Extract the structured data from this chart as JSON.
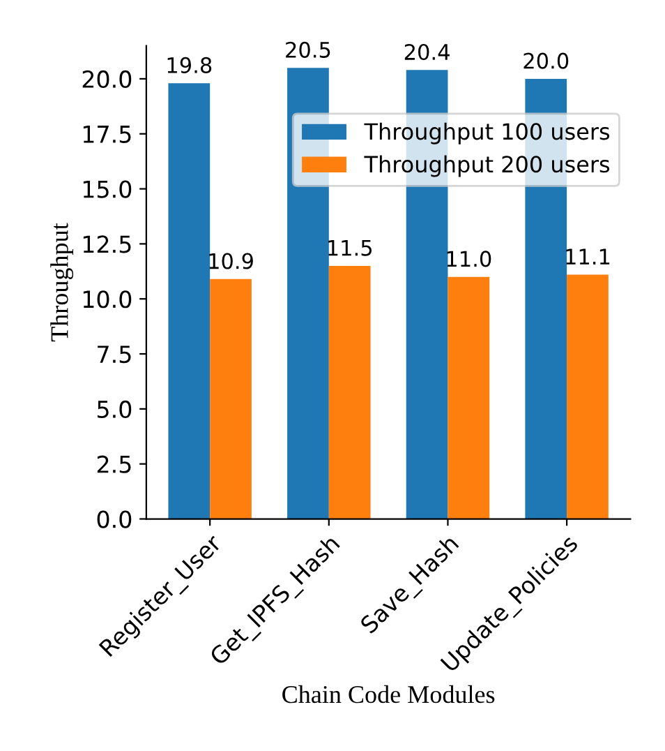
{
  "chart_data": {
    "type": "bar",
    "xlabel": "Chain Code Modules",
    "ylabel": "Throughput",
    "categories": [
      "Register_User",
      "Get_IPFS_Hash",
      "Save_Hash",
      "Update_Policies"
    ],
    "series": [
      {
        "name": "Throughput 100 users",
        "color": "#1f77b4",
        "values": [
          19.8,
          20.5,
          20.4,
          20.0
        ],
        "value_labels": [
          "19.8",
          "20.5",
          "20.4",
          "20.0"
        ]
      },
      {
        "name": "Throughput 200 users",
        "color": "#ff7f0e",
        "values": [
          10.9,
          11.5,
          11.0,
          11.1
        ],
        "value_labels": [
          "10.9",
          "11.5",
          "11.0",
          "11.1"
        ]
      }
    ],
    "ylim": [
      0,
      21.5
    ],
    "yticks": [
      {
        "value": 0,
        "label": "0.0"
      },
      {
        "value": 2.5,
        "label": "2.5"
      },
      {
        "value": 5,
        "label": "5.0"
      },
      {
        "value": 7.5,
        "label": "7.5"
      },
      {
        "value": 10,
        "label": "10.0"
      },
      {
        "value": 12.5,
        "label": "12.5"
      },
      {
        "value": 15,
        "label": "15.0"
      },
      {
        "value": 17.5,
        "label": "17.5"
      },
      {
        "value": 20,
        "label": "20.0"
      }
    ],
    "legend": "top right",
    "grid": false
  }
}
